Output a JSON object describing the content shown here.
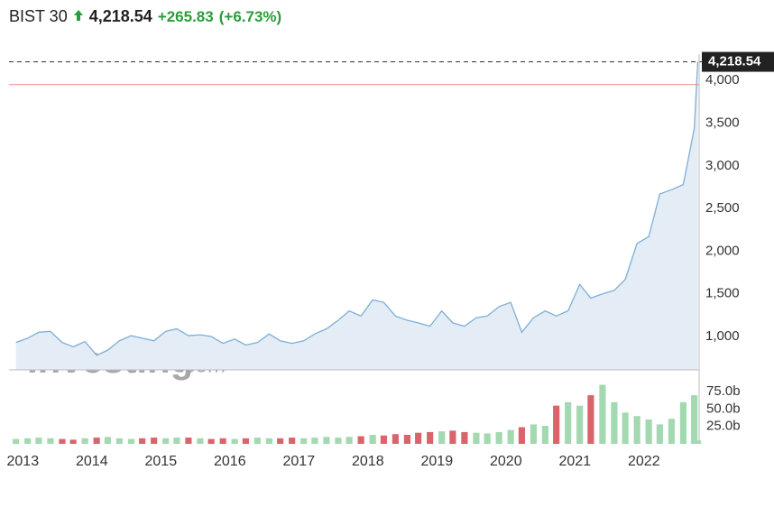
{
  "header": {
    "name": "BIST 30",
    "price": "4,218.54",
    "change": "+265.83",
    "change_pct": "(+6.73%)"
  },
  "watermark": {
    "brand": "Investing",
    "suffix": ".com"
  },
  "chart_data": [
    {
      "type": "area",
      "color": "#7eaed6",
      "fill": "#e4edf6",
      "prev_line_color": "#f08a7e",
      "last_price": {
        "value": 4218.54,
        "label": "4,218.54"
      },
      "prev_close_change": 265.83,
      "x": [
        2012.9,
        2013.07,
        2013.23,
        2013.4,
        2013.57,
        2013.73,
        2013.9,
        2014.07,
        2014.23,
        2014.4,
        2014.57,
        2014.73,
        2014.9,
        2015.07,
        2015.23,
        2015.4,
        2015.57,
        2015.73,
        2015.9,
        2016.07,
        2016.23,
        2016.4,
        2016.57,
        2016.73,
        2016.9,
        2017.07,
        2017.23,
        2017.4,
        2017.57,
        2017.73,
        2017.9,
        2018.07,
        2018.23,
        2018.4,
        2018.57,
        2018.73,
        2018.9,
        2019.07,
        2019.23,
        2019.4,
        2019.57,
        2019.73,
        2019.9,
        2020.07,
        2020.23,
        2020.4,
        2020.57,
        2020.73,
        2020.9,
        2021.07,
        2021.23,
        2021.4,
        2021.57,
        2021.73,
        2021.9,
        2022.07,
        2022.23,
        2022.4,
        2022.57,
        2022.73,
        2022.78
      ],
      "values": [
        930,
        980,
        1050,
        1060,
        930,
        880,
        940,
        780,
        840,
        950,
        1010,
        980,
        950,
        1060,
        1090,
        1010,
        1020,
        1000,
        920,
        970,
        900,
        930,
        1030,
        950,
        920,
        950,
        1030,
        1090,
        1190,
        1300,
        1240,
        1430,
        1400,
        1240,
        1190,
        1160,
        1120,
        1300,
        1160,
        1120,
        1220,
        1240,
        1350,
        1400,
        1050,
        1220,
        1300,
        1240,
        1300,
        1610,
        1450,
        1500,
        1540,
        1670,
        2090,
        2170,
        2670,
        2720,
        2780,
        3440,
        4218.54
      ],
      "xlim": [
        2012.8,
        2022.8
      ],
      "xticks": [
        2013,
        2014,
        2015,
        2016,
        2017,
        2018,
        2019,
        2020,
        2021,
        2022
      ],
      "ylim": [
        609,
        4309
      ],
      "yticks": [
        {
          "value": 1000,
          "label": "1,000"
        },
        {
          "value": 1500,
          "label": "1,500"
        },
        {
          "value": 2000,
          "label": "2,000"
        },
        {
          "value": 2500,
          "label": "2,500"
        },
        {
          "value": 3000,
          "label": "3,000"
        },
        {
          "value": 3500,
          "label": "3,500"
        },
        {
          "value": 4000,
          "label": "4,000"
        }
      ]
    },
    {
      "type": "bar",
      "up_color": "#a3d9b0",
      "down_color": "#d9646a",
      "values": [
        7,
        8,
        9,
        8,
        7,
        6,
        8,
        9,
        10,
        8,
        7,
        8,
        9,
        8,
        9,
        9,
        8,
        7,
        8,
        7,
        8,
        9,
        8,
        8,
        9,
        8,
        9,
        10,
        9,
        10,
        11,
        13,
        12,
        14,
        13,
        16,
        17,
        18,
        19,
        17,
        16,
        15,
        17,
        20,
        24,
        28,
        26,
        55,
        60,
        55,
        70,
        85,
        60,
        45,
        40,
        35,
        28,
        36,
        60,
        70,
        5
      ],
      "ylim": [
        0,
        100
      ],
      "yticks": [
        {
          "value": 25,
          "label": "25.0b"
        },
        {
          "value": 50,
          "label": "50.0b"
        },
        {
          "value": 75,
          "label": "75.0b"
        }
      ]
    }
  ]
}
